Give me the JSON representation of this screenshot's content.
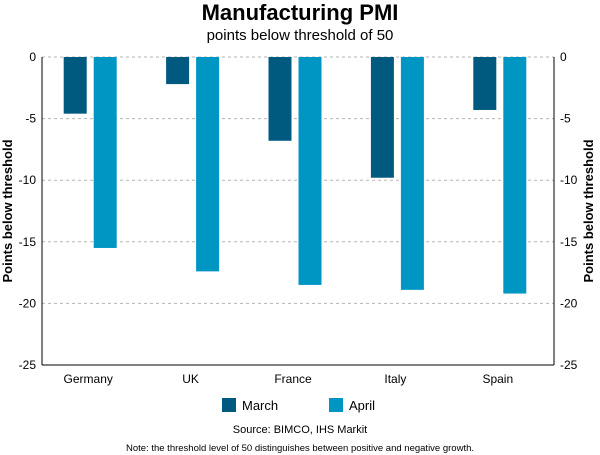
{
  "chart_data": {
    "type": "bar",
    "title": "Manufacturing PMI",
    "subtitle": "points below threshold of 50",
    "ylabel": "Points below threshold",
    "ylabel_right": "Points below threshold",
    "categories": [
      "Germany",
      "UK",
      "France",
      "Italy",
      "Spain"
    ],
    "series": [
      {
        "name": "March",
        "color": "#005a80",
        "values": [
          -4.6,
          -2.2,
          -6.8,
          -9.8,
          -4.3
        ]
      },
      {
        "name": "April",
        "color": "#0096c3",
        "values": [
          -15.5,
          -17.4,
          -18.5,
          -18.9,
          -19.2
        ]
      }
    ],
    "ylim": [
      -25,
      0
    ],
    "yticks": [
      0,
      -5,
      -10,
      -15,
      -20,
      -25
    ],
    "grid": true,
    "legend_position": "bottom"
  },
  "footer": {
    "source": "Source: BIMCO, IHS Markit",
    "note": "Note: the threshold level of 50 distinguishes between positive and negative growth."
  }
}
